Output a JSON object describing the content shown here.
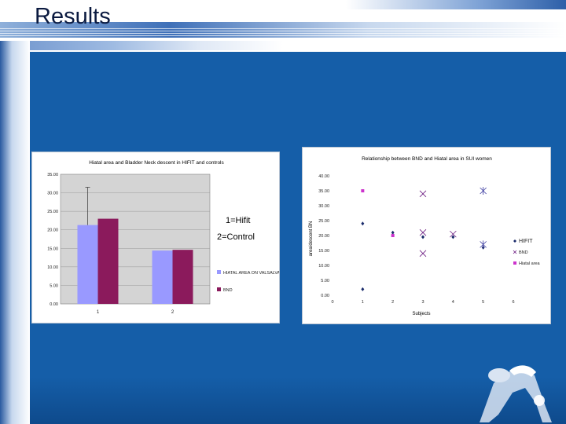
{
  "slide": {
    "title": "Results"
  },
  "bar_chart_overlay": {
    "label1": "1=Hifit",
    "label2": "2=Control"
  },
  "chart_data": [
    {
      "type": "bar",
      "title": "Hiatal area and Bladder Neck descent in HIFIT and controls",
      "categories": [
        "1",
        "2"
      ],
      "series": [
        {
          "name": "HIATAL AREA ON VALSALVA",
          "color": "#9999ff",
          "values": [
            21.3,
            14.4
          ]
        },
        {
          "name": "BND",
          "color": "#8b1a5c",
          "values": [
            23.0,
            14.6
          ]
        }
      ],
      "error_upper": [
        31.5,
        null
      ],
      "ylim": [
        0,
        35
      ],
      "yticks": [
        "0.00",
        "5.00",
        "10.00",
        "15.00",
        "20.00",
        "25.00",
        "30.00",
        "35.00"
      ],
      "grid": true,
      "legend": "right"
    },
    {
      "type": "scatter",
      "title": "Relationship between BND and Hiatal area in SUI women",
      "xlabel": "Subjects",
      "ylabel": "area/descent BN",
      "xlim": [
        0,
        6
      ],
      "ylim": [
        0,
        40
      ],
      "xticks": [
        "0",
        "1",
        "2",
        "3",
        "4",
        "5",
        "6"
      ],
      "yticks": [
        "0.00",
        "5.00",
        "10.00",
        "15.00",
        "20.00",
        "25.00",
        "30.00",
        "35.00",
        "40.00"
      ],
      "series": [
        {
          "name": "HIFIT",
          "color": "#1a2b6b",
          "marker": "diamond",
          "points": [
            [
              1,
              24
            ],
            [
              1,
              2
            ],
            [
              2,
              21
            ],
            [
              3,
              19.5
            ],
            [
              4,
              19.5
            ],
            [
              5,
              16
            ]
          ]
        },
        {
          "name": "BND",
          "color": "#6a1a80",
          "marker": "x",
          "points": [
            [
              3,
              34
            ],
            [
              4,
              20.5
            ],
            [
              3,
              21
            ],
            [
              3,
              14
            ]
          ]
        },
        {
          "name": "Hiatal area",
          "color": "#cc33cc",
          "marker": "square",
          "points": [
            [
              1,
              35
            ],
            [
              2,
              20
            ]
          ]
        }
      ],
      "extra_markers": {
        "color": "#3a3aa0",
        "marker": "star",
        "points": [
          [
            5,
            35
          ],
          [
            5,
            17
          ]
        ]
      },
      "legend": "right"
    }
  ]
}
